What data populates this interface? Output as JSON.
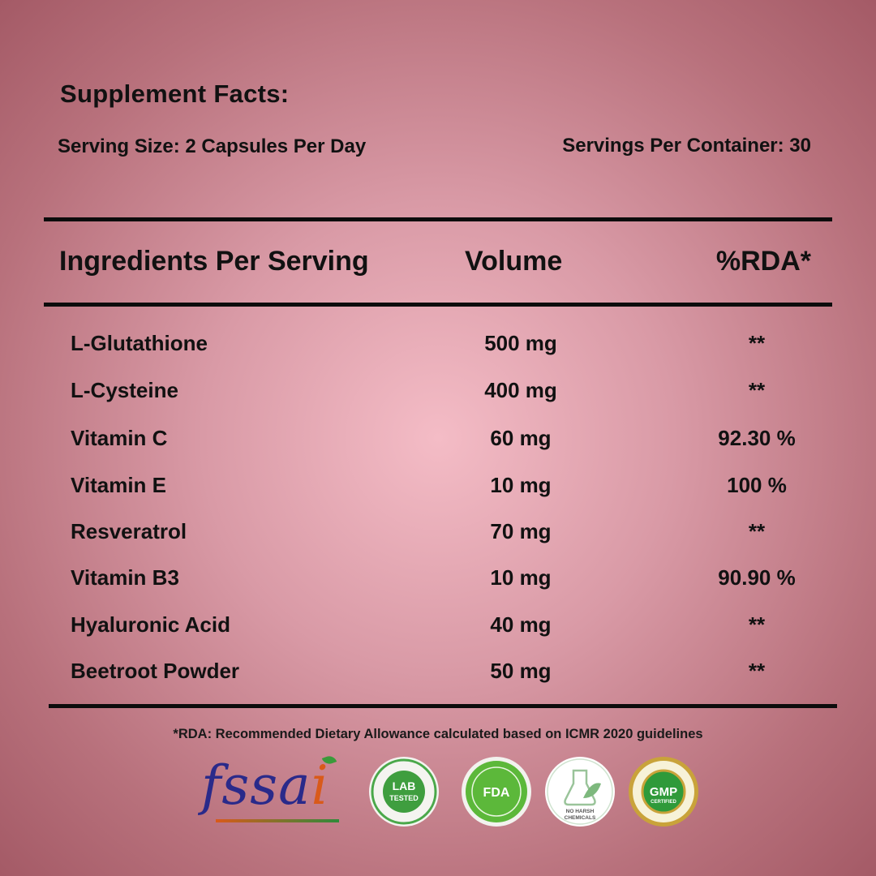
{
  "header": {
    "title": "Supplement Facts:",
    "serving_size": "Serving Size: 2 Capsules Per Day",
    "servings_per_container": "Servings Per Container: 30"
  },
  "table": {
    "columns": [
      "Ingredients Per Serving",
      "Volume",
      "%RDA*"
    ],
    "rows": [
      {
        "name": "L-Glutathione",
        "volume": "500 mg",
        "rda": "**"
      },
      {
        "name": "L-Cysteine",
        "volume": "400 mg",
        "rda": "**"
      },
      {
        "name": "Vitamin C",
        "volume": "60 mg",
        "rda": "92.30 %"
      },
      {
        "name": "Vitamin E",
        "volume": "10 mg",
        "rda": "100 %"
      },
      {
        "name": "Resveratrol",
        "volume": "70 mg",
        "rda": "**"
      },
      {
        "name": "Vitamin B3",
        "volume": "10 mg",
        "rda": "90.90 %"
      },
      {
        "name": "Hyaluronic Acid",
        "volume": "40 mg",
        "rda": "**"
      },
      {
        "name": "Beetroot Powder",
        "volume": "50 mg",
        "rda": "**"
      }
    ]
  },
  "footnote": "*RDA: Recommended Dietary Allowance calculated based on ICMR 2020 guidelines",
  "badges": [
    {
      "icon": "fssai-logo",
      "text": "fssai"
    },
    {
      "icon": "lab-tested-badge-icon",
      "text": "LAB TESTED"
    },
    {
      "icon": "fda-approved-badge-icon",
      "text": "FDA"
    },
    {
      "icon": "no-harsh-chemicals-badge-icon",
      "text": "NO HARSH CHEMICALS"
    },
    {
      "icon": "gmp-certified-badge-icon",
      "text": "GMP"
    }
  ],
  "colors": {
    "background_center": "#f4bcc6",
    "background_edge": "#a45a66",
    "text": "#111111",
    "badge_green": "#3aa83a",
    "badge_gold": "#c9a33a"
  }
}
